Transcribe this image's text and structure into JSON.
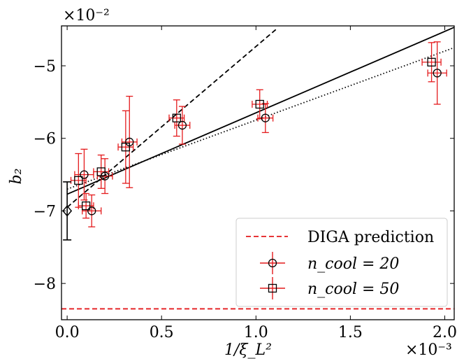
{
  "chart_data": {
    "type": "scatter",
    "xlabel": "1/ξ_L²",
    "ylabel": "b₂",
    "x_multiplier_label": "×10⁻³",
    "y_multiplier_label": "×10⁻²",
    "xlim": [
      -3e-05,
      0.00205
    ],
    "ylim": [
      -0.085,
      -0.0445
    ],
    "x_ticks": [
      0,
      0.0005,
      0.001,
      0.0015,
      0.002
    ],
    "x_tick_labels": [
      "0.0",
      "0.5",
      "1.0",
      "1.5",
      "2.0"
    ],
    "y_ticks": [
      -0.05,
      -0.06,
      -0.07,
      -0.08
    ],
    "y_tick_labels": [
      "−5",
      "−6",
      "−7",
      "−8"
    ],
    "grid": false,
    "legend_position": "bottom-right",
    "legend": [
      {
        "label": "DIGA prediction",
        "style": "dashed",
        "color": "#e41a1c"
      },
      {
        "label": "n_cool = 20",
        "marker": "circle",
        "color": "#e41a1c"
      },
      {
        "label": "n_cool = 50",
        "marker": "square",
        "color": "#e41a1c"
      }
    ],
    "reference": {
      "name": "diamond",
      "x": 0,
      "y": -0.07,
      "yerr": 0.004,
      "color": "#000000"
    },
    "hline": {
      "name": "DIGA prediction",
      "y": -0.0835,
      "color": "#e41a1c",
      "style": "dashed"
    },
    "series": [
      {
        "name": "n_cool = 20",
        "marker": "circle",
        "color": "#e41a1c",
        "points": [
          {
            "x": 9e-05,
            "y": -0.065,
            "xerr": 5e-05,
            "yerr": 0.0035
          },
          {
            "x": 0.00013,
            "y": -0.07,
            "xerr": 5e-05,
            "yerr": 0.0022
          },
          {
            "x": 0.0002,
            "y": -0.0652,
            "xerr": 4e-05,
            "yerr": 0.0024
          },
          {
            "x": 0.00033,
            "y": -0.0605,
            "xerr": 4e-05,
            "yerr": 0.0063
          },
          {
            "x": 0.00061,
            "y": -0.0582,
            "xerr": 4e-05,
            "yerr": 0.0026
          },
          {
            "x": 0.00105,
            "y": -0.0572,
            "xerr": 4e-05,
            "yerr": 0.002
          },
          {
            "x": 0.00196,
            "y": -0.051,
            "xerr": 5e-05,
            "yerr": 0.0043
          }
        ]
      },
      {
        "name": "n_cool = 50",
        "marker": "square",
        "color": "#e41a1c",
        "points": [
          {
            "x": 6e-05,
            "y": -0.0658,
            "xerr": 4e-05,
            "yerr": 0.0037
          },
          {
            "x": 0.0001,
            "y": -0.0693,
            "xerr": 4e-05,
            "yerr": 0.0017
          },
          {
            "x": 0.00018,
            "y": -0.0646,
            "xerr": 4e-05,
            "yerr": 0.0023
          },
          {
            "x": 0.00031,
            "y": -0.0612,
            "xerr": 4e-05,
            "yerr": 0.005
          },
          {
            "x": 0.00058,
            "y": -0.0572,
            "xerr": 4e-05,
            "yerr": 0.0025
          },
          {
            "x": 0.00102,
            "y": -0.0553,
            "xerr": 4e-05,
            "yerr": 0.002
          },
          {
            "x": 0.00193,
            "y": -0.0495,
            "xerr": 5e-05,
            "yerr": 0.0027
          }
        ]
      }
    ],
    "fit_lines": [
      {
        "name": "solid",
        "style": "solid",
        "color": "#000000",
        "x0": 0,
        "y0": -0.0677,
        "x1": 0.00205,
        "y1": -0.0447
      },
      {
        "name": "dashed",
        "style": "dashed",
        "color": "#000000",
        "x0": 0,
        "y0": -0.0695,
        "x1": 0.00111,
        "y1": -0.0449
      },
      {
        "name": "dotted",
        "style": "dotted",
        "color": "#000000",
        "x0": 0,
        "y0": -0.067,
        "x1": 0.00205,
        "y1": -0.0475
      }
    ]
  }
}
